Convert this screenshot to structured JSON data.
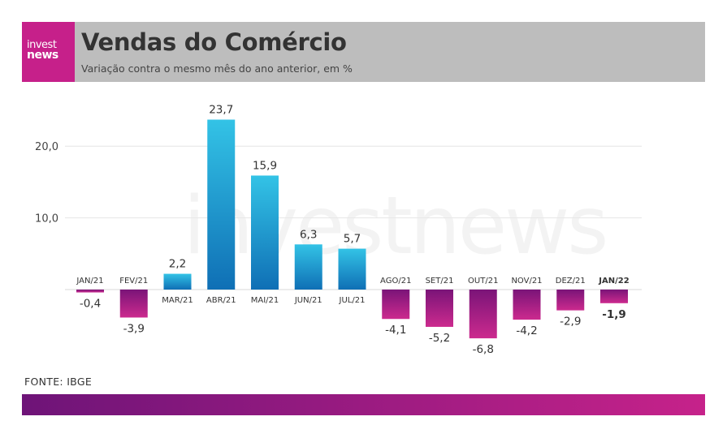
{
  "header": {
    "logo_line1": "invest",
    "logo_line2": "news",
    "title": "Vendas do Comércio",
    "subtitle": "Variação contra o mesmo mês do ano anterior, em %"
  },
  "source": "FONTE: IBGE",
  "watermark": "investnews",
  "colors": {
    "header_bg": "#bdbdbd",
    "brand_magenta": "#c6208a",
    "positive_bar_top": "#33c3e6",
    "positive_bar_bottom": "#0f6fb5",
    "negative_bar_top": "#7a1478",
    "negative_bar_bottom": "#cc2a8e"
  },
  "chart_data": {
    "type": "bar",
    "title": "Vendas do Comércio",
    "subtitle": "Variação contra o mesmo mês do ano anterior, em %",
    "categories": [
      "JAN/21",
      "FEV/21",
      "MAR/21",
      "ABR/21",
      "MAI/21",
      "JUN/21",
      "JUL/21",
      "AGO/21",
      "SET/21",
      "OUT/21",
      "NOV/21",
      "DEZ/21",
      "JAN/22"
    ],
    "values": [
      -0.4,
      -3.9,
      2.2,
      23.7,
      15.9,
      6.3,
      5.7,
      -4.1,
      -5.2,
      -6.8,
      -4.2,
      -2.9,
      -1.9
    ],
    "value_labels": [
      "-0,4",
      "-3,9",
      "2,2",
      "23,7",
      "15,9",
      "6,3",
      "5,7",
      "-4,1",
      "-5,2",
      "-6,8",
      "-4,2",
      "-2,9",
      "-1,9"
    ],
    "highlight_category": "JAN/22",
    "yticks": [
      10.0,
      20.0
    ],
    "ytick_labels": [
      "10,0",
      "20,0"
    ],
    "ylim": [
      -8,
      26
    ],
    "grid": true,
    "xlabel": "",
    "ylabel": ""
  }
}
